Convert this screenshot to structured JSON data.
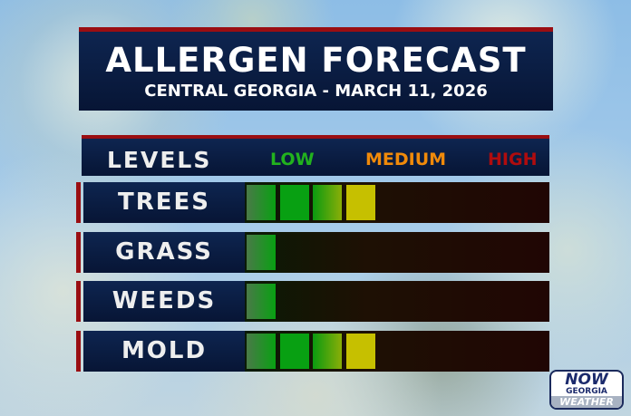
{
  "title": "ALLERGEN FORECAST",
  "subtitle": "CENTRAL GEORGIA - MARCH 11, 2026",
  "levels_header": {
    "label": "LEVELS",
    "low": "LOW",
    "medium": "MEDIUM",
    "high": "HIGH"
  },
  "scale_segments": 10,
  "rows": [
    {
      "label": "TREES",
      "level": 4
    },
    {
      "label": "GRASS",
      "level": 1
    },
    {
      "label": "WEEDS",
      "level": 1
    },
    {
      "label": "MOLD",
      "level": 4
    }
  ],
  "segment_colors": [
    "#3f8a3a",
    "#08a012",
    "#1a9a10",
    "#c6c000"
  ],
  "logo": {
    "line1": "NOW",
    "line2": "GEORGIA",
    "line3": "WEATHER"
  }
}
